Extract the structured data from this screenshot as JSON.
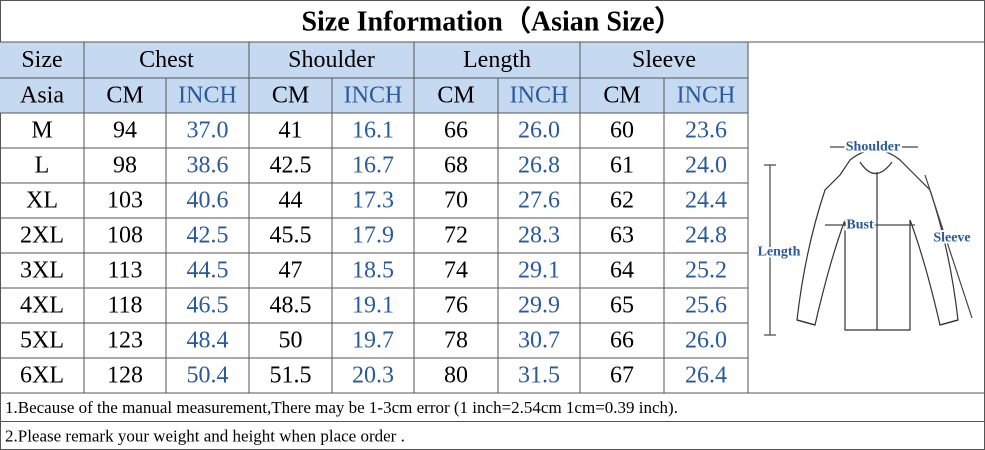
{
  "title": "Size Information（Asian Size）",
  "header": {
    "groups": [
      "Size",
      "Chest",
      "Shoulder",
      "Length",
      "Sleeve"
    ],
    "units": [
      "Asia",
      "CM",
      "INCH",
      "CM",
      "INCH",
      "CM",
      "INCH",
      "CM",
      "INCH"
    ]
  },
  "table": {
    "rows": [
      [
        "M",
        "94",
        "37.0",
        "41",
        "16.1",
        "66",
        "26.0",
        "60",
        "23.6"
      ],
      [
        "L",
        "98",
        "38.6",
        "42.5",
        "16.7",
        "68",
        "26.8",
        "61",
        "24.0"
      ],
      [
        "XL",
        "103",
        "40.6",
        "44",
        "17.3",
        "70",
        "27.6",
        "62",
        "24.4"
      ],
      [
        "2XL",
        "108",
        "42.5",
        "45.5",
        "17.9",
        "72",
        "28.3",
        "63",
        "24.8"
      ],
      [
        "3XL",
        "113",
        "44.5",
        "47",
        "18.5",
        "74",
        "29.1",
        "64",
        "25.2"
      ],
      [
        "4XL",
        "118",
        "46.5",
        "48.5",
        "19.1",
        "76",
        "29.9",
        "65",
        "25.6"
      ],
      [
        "5XL",
        "123",
        "48.4",
        "50",
        "19.7",
        "78",
        "30.7",
        "66",
        "26.0"
      ],
      [
        "6XL",
        "128",
        "50.4",
        "51.5",
        "20.3",
        "80",
        "31.5",
        "67",
        "26.4"
      ]
    ]
  },
  "notes": [
    "1.Because of the manual measurement,There may be 1-3cm error (1 inch=2.54cm 1cm=0.39 inch).",
    "2.Please remark your weight and height when place order ."
  ],
  "diagram": {
    "labels": {
      "shoulder": "Shoulder",
      "bust": "Bust",
      "length": "Length",
      "sleeve": "Sleeve"
    }
  }
}
